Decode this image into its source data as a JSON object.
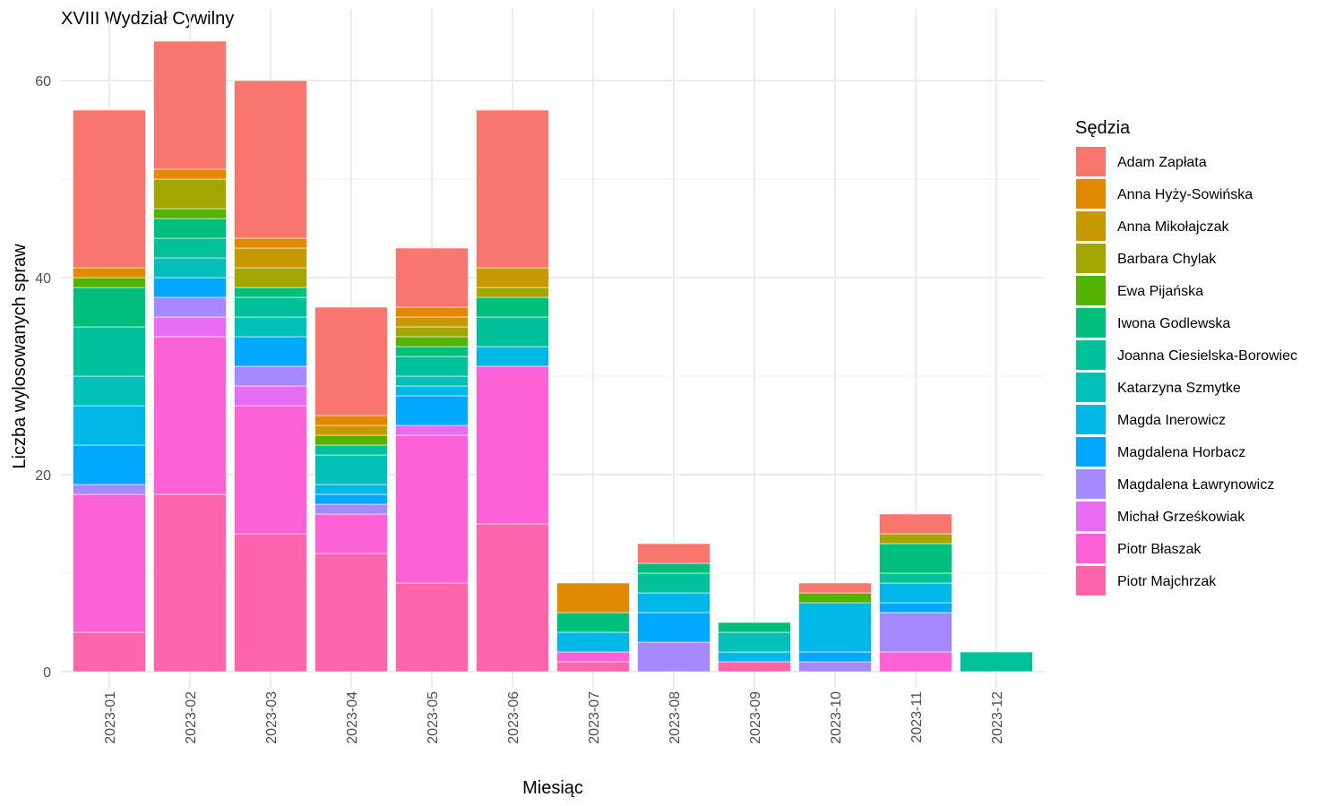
{
  "chart_data": {
    "type": "bar",
    "stacked": true,
    "title": "XVIII Wydział Cywilny",
    "xlabel": "Miesiąc",
    "ylabel": "Liczba wylosowanych spraw",
    "ylim": [
      0,
      64
    ],
    "yticks": [
      0,
      20,
      40,
      60
    ],
    "grid": true,
    "legend_title": "Sędzia",
    "legend_position": "right",
    "categories": [
      "2023-01",
      "2023-02",
      "2023-03",
      "2023-04",
      "2023-05",
      "2023-06",
      "2023-07",
      "2023-08",
      "2023-09",
      "2023-10",
      "2023-11",
      "2023-12"
    ],
    "series": [
      {
        "name": "Piotr Majchrzak",
        "color": "#FF65AC",
        "values": [
          4,
          18,
          14,
          12,
          9,
          15,
          1,
          0,
          1,
          0,
          0,
          0
        ]
      },
      {
        "name": "Piotr Błaszak",
        "color": "#FC61D5",
        "values": [
          14,
          16,
          13,
          4,
          15,
          16,
          1,
          0,
          0,
          0,
          2,
          0
        ]
      },
      {
        "name": "Michał Grześkowiak",
        "color": "#E76BF3",
        "values": [
          0,
          2,
          2,
          0,
          1,
          0,
          0,
          0,
          0,
          0,
          0,
          0
        ]
      },
      {
        "name": "Magdalena Ławrynowicz",
        "color": "#A58AFF",
        "values": [
          1,
          2,
          2,
          1,
          0,
          0,
          0,
          3,
          0,
          1,
          4,
          0
        ]
      },
      {
        "name": "Magdalena Horbacz",
        "color": "#00A9FF",
        "values": [
          4,
          2,
          3,
          1,
          3,
          0,
          0,
          3,
          0,
          1,
          1,
          0
        ]
      },
      {
        "name": "Magda Inerowicz",
        "color": "#00B8E7",
        "values": [
          4,
          0,
          0,
          1,
          1,
          2,
          2,
          2,
          1,
          5,
          2,
          0
        ]
      },
      {
        "name": "Katarzyna Szmytke",
        "color": "#00C0B8",
        "values": [
          3,
          2,
          2,
          3,
          1,
          0,
          0,
          0,
          2,
          0,
          0,
          0
        ]
      },
      {
        "name": "Joanna Ciesielska-Borowiec",
        "color": "#00C19A",
        "values": [
          5,
          2,
          2,
          1,
          2,
          3,
          0,
          2,
          0,
          0,
          1,
          2
        ]
      },
      {
        "name": "Iwona Godlewska",
        "color": "#00BF7D",
        "values": [
          4,
          2,
          1,
          0,
          1,
          2,
          2,
          1,
          1,
          0,
          3,
          0
        ]
      },
      {
        "name": "Ewa Pijańska",
        "color": "#53B400",
        "values": [
          1,
          1,
          0,
          1,
          1,
          0,
          0,
          0,
          0,
          1,
          0,
          0
        ]
      },
      {
        "name": "Barbara Chylak",
        "color": "#A3A500",
        "values": [
          0,
          3,
          2,
          0,
          1,
          1,
          0,
          0,
          0,
          0,
          1,
          0
        ]
      },
      {
        "name": "Anna Mikołajczak",
        "color": "#C49A00",
        "values": [
          0,
          0,
          2,
          1,
          1,
          2,
          0,
          0,
          0,
          0,
          0,
          0
        ]
      },
      {
        "name": "Anna Hyży-Sowińska",
        "color": "#E38900",
        "values": [
          1,
          1,
          1,
          1,
          1,
          0,
          3,
          0,
          0,
          0,
          0,
          0
        ]
      },
      {
        "name": "Adam Zapłata",
        "color": "#F8766D",
        "values": [
          16,
          13,
          16,
          11,
          6,
          16,
          0,
          2,
          0,
          1,
          2,
          0
        ]
      }
    ],
    "legend_order": [
      "Adam Zapłata",
      "Anna Hyży-Sowińska",
      "Anna Mikołajczak",
      "Barbara Chylak",
      "Ewa Pijańska",
      "Iwona Godlewska",
      "Joanna Ciesielska-Borowiec",
      "Katarzyna Szmytke",
      "Magda Inerowicz",
      "Magdalena Horbacz",
      "Magdalena Ławrynowicz",
      "Michał Grześkowiak",
      "Piotr Błaszak",
      "Piotr Majchrzak"
    ]
  }
}
